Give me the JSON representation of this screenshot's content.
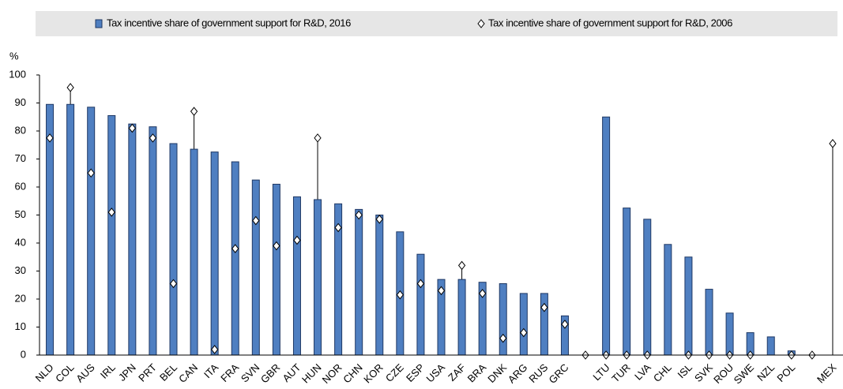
{
  "chart_data": {
    "type": "bar",
    "y_label": "%",
    "categories": [
      "NLD",
      "COL",
      "AUS",
      "IRL",
      "JPN",
      "PRT",
      "BEL",
      "CAN",
      "ITA",
      "FRA",
      "SVN",
      "GBR",
      "AUT",
      "HUN",
      "NOR",
      "CHN",
      "KOR",
      "CZE",
      "ESP",
      "USA",
      "ZAF",
      "BRA",
      "DNK",
      "ARG",
      "RUS",
      "GRC",
      null,
      "LTU",
      "TUR",
      "LVA",
      "CHL",
      "ISL",
      "SVK",
      "ROU",
      "SWE",
      "NZL",
      "POL",
      null,
      "MEX"
    ],
    "series": [
      {
        "name": "Tax incentive share of government support for R&D, 2016",
        "color": "#4f7fc1",
        "marker": "bar",
        "values": [
          89.5,
          89.5,
          88.5,
          85.5,
          82.5,
          81.5,
          75.5,
          73.5,
          72.5,
          69,
          62.5,
          61,
          56.5,
          55.5,
          54,
          52,
          50,
          44,
          36,
          27,
          27,
          26,
          25.5,
          22,
          22,
          14,
          null,
          85,
          52.5,
          48.5,
          39.5,
          35,
          23.5,
          15,
          8,
          6.5,
          1.5,
          null,
          0
        ]
      },
      {
        "name": "Tax incentive share of government support for R&D, 2006",
        "color": "#ffffff",
        "marker": "diamond",
        "values": [
          77.5,
          95.5,
          65,
          51,
          81,
          77.5,
          25.5,
          87,
          2,
          38,
          48,
          39,
          41,
          77.5,
          45.5,
          50,
          48.5,
          21.5,
          25.5,
          23,
          32,
          22,
          6,
          8,
          17,
          11,
          0,
          0,
          0,
          0,
          null,
          0,
          0,
          0,
          0,
          null,
          0,
          0,
          75.5
        ]
      }
    ],
    "ylim": [
      0,
      100
    ],
    "yticks": [
      0,
      10,
      20,
      30,
      40,
      50,
      60,
      70,
      80,
      90,
      100
    ]
  }
}
